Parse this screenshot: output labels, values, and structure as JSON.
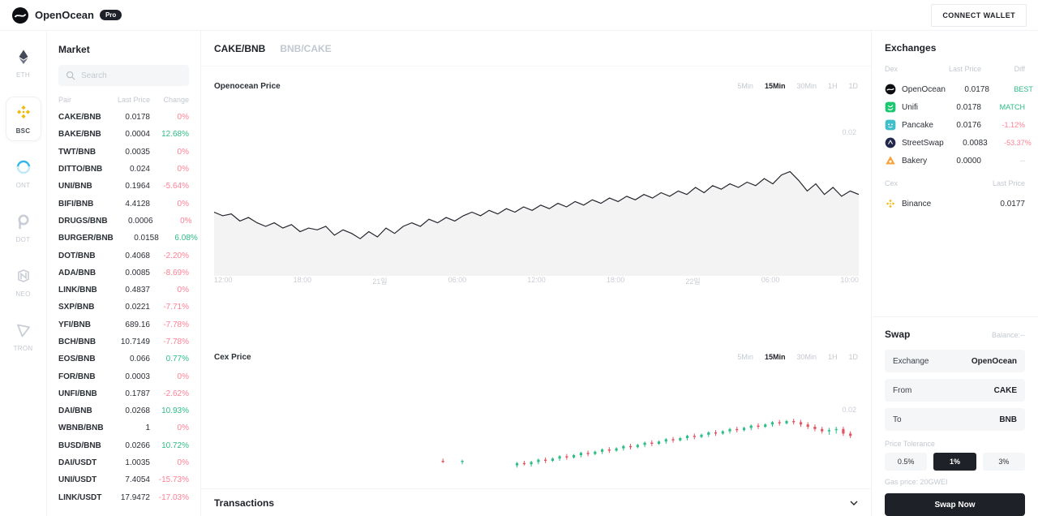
{
  "header": {
    "brand": "OpenOcean",
    "badge": "Pro",
    "connect_wallet_label": "CONNECT WALLET"
  },
  "sidebar": {
    "chains": [
      {
        "id": "eth",
        "label": "ETH",
        "active": false
      },
      {
        "id": "bsc",
        "label": "BSC",
        "active": true
      },
      {
        "id": "ont",
        "label": "ONT",
        "active": false
      },
      {
        "id": "dot",
        "label": "DOT",
        "active": false
      },
      {
        "id": "neo",
        "label": "NEO",
        "active": false
      },
      {
        "id": "tron",
        "label": "TRON",
        "active": false
      }
    ]
  },
  "market": {
    "title": "Market",
    "search_placeholder": "Search",
    "columns": [
      "Pair",
      "Last Price",
      "Change"
    ],
    "rows": [
      {
        "pair": "CAKE/BNB",
        "price": "0.0178",
        "change": "0%",
        "dir": "down"
      },
      {
        "pair": "BAKE/BNB",
        "price": "0.0004",
        "change": "12.68%",
        "dir": "up"
      },
      {
        "pair": "TWT/BNB",
        "price": "0.0035",
        "change": "0%",
        "dir": "down"
      },
      {
        "pair": "DITTO/BNB",
        "price": "0.024",
        "change": "0%",
        "dir": "down"
      },
      {
        "pair": "UNI/BNB",
        "price": "0.1964",
        "change": "-5.64%",
        "dir": "down"
      },
      {
        "pair": "BIFI/BNB",
        "price": "4.4128",
        "change": "0%",
        "dir": "down"
      },
      {
        "pair": "DRUGS/BNB",
        "price": "0.0006",
        "change": "0%",
        "dir": "down"
      },
      {
        "pair": "BURGER/BNB",
        "price": "0.0158",
        "change": "6.08%",
        "dir": "up"
      },
      {
        "pair": "DOT/BNB",
        "price": "0.4068",
        "change": "-2.20%",
        "dir": "down"
      },
      {
        "pair": "ADA/BNB",
        "price": "0.0085",
        "change": "-8.69%",
        "dir": "down"
      },
      {
        "pair": "LINK/BNB",
        "price": "0.4837",
        "change": "0%",
        "dir": "down"
      },
      {
        "pair": "SXP/BNB",
        "price": "0.0221",
        "change": "-7.71%",
        "dir": "down"
      },
      {
        "pair": "YFI/BNB",
        "price": "689.16",
        "change": "-7.78%",
        "dir": "down"
      },
      {
        "pair": "BCH/BNB",
        "price": "10.7149",
        "change": "-7.78%",
        "dir": "down"
      },
      {
        "pair": "EOS/BNB",
        "price": "0.066",
        "change": "0.77%",
        "dir": "up"
      },
      {
        "pair": "FOR/BNB",
        "price": "0.0003",
        "change": "0%",
        "dir": "down"
      },
      {
        "pair": "UNFI/BNB",
        "price": "0.1787",
        "change": "-2.62%",
        "dir": "down"
      },
      {
        "pair": "DAI/BNB",
        "price": "0.0268",
        "change": "10.93%",
        "dir": "up"
      },
      {
        "pair": "WBNB/BNB",
        "price": "1",
        "change": "0%",
        "dir": "down"
      },
      {
        "pair": "BUSD/BNB",
        "price": "0.0266",
        "change": "10.72%",
        "dir": "up"
      },
      {
        "pair": "DAI/USDT",
        "price": "1.0035",
        "change": "0%",
        "dir": "down"
      },
      {
        "pair": "UNI/USDT",
        "price": "7.4054",
        "change": "-15.73%",
        "dir": "down"
      },
      {
        "pair": "LINK/USDT",
        "price": "17.9472",
        "change": "-17.03%",
        "dir": "down"
      }
    ]
  },
  "chart": {
    "pair_tabs": [
      {
        "label": "CAKE/BNB",
        "active": true
      },
      {
        "label": "BNB/CAKE",
        "active": false
      }
    ],
    "transactions_label": "Transactions"
  },
  "chart_data": [
    {
      "type": "line",
      "title": "Openocean Price",
      "intervals": [
        "5Min",
        "15Min",
        "30Min",
        "1H",
        "1D"
      ],
      "active_interval": "15Min",
      "x_ticks": [
        "12:00",
        "18:00",
        "21일",
        "06:00",
        "12:00",
        "18:00",
        "22일",
        "06:00",
        "10:00"
      ],
      "y_axis_label": "0.02",
      "values": [
        36,
        34,
        35,
        31,
        33,
        30,
        28,
        30,
        27,
        29,
        25,
        27,
        26,
        28,
        23,
        26,
        24,
        21,
        25,
        22,
        27,
        24,
        28,
        30,
        28,
        32,
        30,
        33,
        31,
        34,
        36,
        34,
        37,
        35,
        38,
        36,
        39,
        37,
        40,
        38,
        41,
        39,
        42,
        40,
        43,
        41,
        44,
        42,
        45,
        43,
        46,
        44,
        47,
        45,
        48,
        46,
        50,
        47,
        51,
        49,
        52,
        50,
        53,
        51,
        55,
        52,
        57,
        59,
        54,
        48,
        52,
        46,
        50,
        45,
        48,
        46
      ]
    },
    {
      "type": "candlestick",
      "title": "Cex Price",
      "intervals": [
        "5Min",
        "15Min",
        "30Min",
        "1H",
        "1D"
      ],
      "active_interval": "15Min",
      "y_axis_label": "0.02",
      "candles": [
        [
          0.355,
          20,
          22,
          18,
          19
        ],
        [
          0.385,
          19,
          21,
          17,
          20
        ],
        [
          0.47,
          16,
          19,
          14,
          18
        ],
        [
          0.481,
          18,
          20,
          16,
          17
        ],
        [
          0.492,
          17,
          20,
          15,
          19
        ],
        [
          0.503,
          19,
          22,
          17,
          21
        ],
        [
          0.514,
          21,
          23,
          18,
          20
        ],
        [
          0.525,
          20,
          23,
          19,
          22
        ],
        [
          0.536,
          22,
          25,
          20,
          24
        ],
        [
          0.547,
          24,
          26,
          21,
          23
        ],
        [
          0.558,
          23,
          26,
          22,
          25
        ],
        [
          0.569,
          25,
          28,
          23,
          27
        ],
        [
          0.58,
          27,
          29,
          24,
          26
        ],
        [
          0.591,
          26,
          29,
          25,
          28
        ],
        [
          0.602,
          28,
          31,
          26,
          30
        ],
        [
          0.613,
          30,
          32,
          27,
          29
        ],
        [
          0.624,
          29,
          32,
          28,
          31
        ],
        [
          0.635,
          31,
          34,
          29,
          33
        ],
        [
          0.646,
          33,
          35,
          30,
          32
        ],
        [
          0.657,
          32,
          35,
          31,
          34
        ],
        [
          0.668,
          34,
          37,
          32,
          36
        ],
        [
          0.679,
          36,
          38,
          33,
          35
        ],
        [
          0.69,
          35,
          38,
          34,
          37
        ],
        [
          0.701,
          37,
          40,
          35,
          39
        ],
        [
          0.712,
          39,
          41,
          36,
          38
        ],
        [
          0.723,
          38,
          41,
          37,
          40
        ],
        [
          0.734,
          40,
          43,
          38,
          42
        ],
        [
          0.745,
          42,
          44,
          39,
          41
        ],
        [
          0.756,
          41,
          44,
          40,
          43
        ],
        [
          0.767,
          43,
          46,
          41,
          45
        ],
        [
          0.778,
          45,
          47,
          42,
          44
        ],
        [
          0.789,
          44,
          47,
          43,
          46
        ],
        [
          0.8,
          46,
          49,
          44,
          48
        ],
        [
          0.811,
          48,
          50,
          45,
          47
        ],
        [
          0.822,
          47,
          50,
          46,
          49
        ],
        [
          0.833,
          49,
          52,
          47,
          51
        ],
        [
          0.844,
          51,
          53,
          48,
          50
        ],
        [
          0.855,
          50,
          53,
          49,
          52
        ],
        [
          0.866,
          52,
          55,
          50,
          54
        ],
        [
          0.877,
          54,
          56,
          51,
          53
        ],
        [
          0.888,
          53,
          56,
          52,
          55
        ],
        [
          0.899,
          55,
          57,
          52,
          54
        ],
        [
          0.91,
          54,
          56,
          50,
          52
        ],
        [
          0.921,
          52,
          54,
          48,
          50
        ],
        [
          0.932,
          50,
          52,
          46,
          48
        ],
        [
          0.943,
          48,
          50,
          44,
          46
        ],
        [
          0.954,
          46,
          49,
          43,
          47
        ],
        [
          0.965,
          47,
          50,
          44,
          48
        ],
        [
          0.976,
          48,
          50,
          42,
          44
        ],
        [
          0.987,
          44,
          46,
          40,
          42
        ]
      ]
    }
  ],
  "exchanges": {
    "title": "Exchanges",
    "dex_columns": [
      "Dex",
      "Last Price",
      "Diff"
    ],
    "dex_rows": [
      {
        "id": "openocean",
        "name": "OpenOcean",
        "price": "0.0178",
        "diff": "BEST",
        "dir": "up"
      },
      {
        "id": "unifi",
        "name": "Unifi",
        "price": "0.0178",
        "diff": "MATCH",
        "dir": "up"
      },
      {
        "id": "pancake",
        "name": "Pancake",
        "price": "0.0176",
        "diff": "-1.12%",
        "dir": "down"
      },
      {
        "id": "streetswap",
        "name": "StreetSwap",
        "price": "0.0083",
        "diff": "-53.37%",
        "dir": "down"
      },
      {
        "id": "bakery",
        "name": "Bakery",
        "price": "0.0000",
        "diff": "--",
        "dir": "neutral"
      }
    ],
    "cex_columns": [
      "Cex",
      "Last Price"
    ],
    "cex_rows": [
      {
        "id": "binance",
        "name": "Binance",
        "price": "0.0177"
      }
    ]
  },
  "swap": {
    "title": "Swap",
    "balance": "Balance:--",
    "fields": [
      {
        "label": "Exchange",
        "value": "OpenOcean"
      },
      {
        "label": "From",
        "value": "CAKE"
      },
      {
        "label": "To",
        "value": "BNB"
      }
    ],
    "tolerance_label": "Price Tolerance",
    "tolerance_options": [
      {
        "label": "0.5%",
        "active": false
      },
      {
        "label": "1%",
        "active": true
      },
      {
        "label": "3%",
        "active": false
      }
    ],
    "gas_text": "Gas price: 20GWEI",
    "swap_button_label": "Swap Now"
  },
  "colors": {
    "positive": "#2dbd85",
    "negative": "#ff8095",
    "dark": "#1f2128",
    "bnb_yellow": "#f0b90b"
  }
}
